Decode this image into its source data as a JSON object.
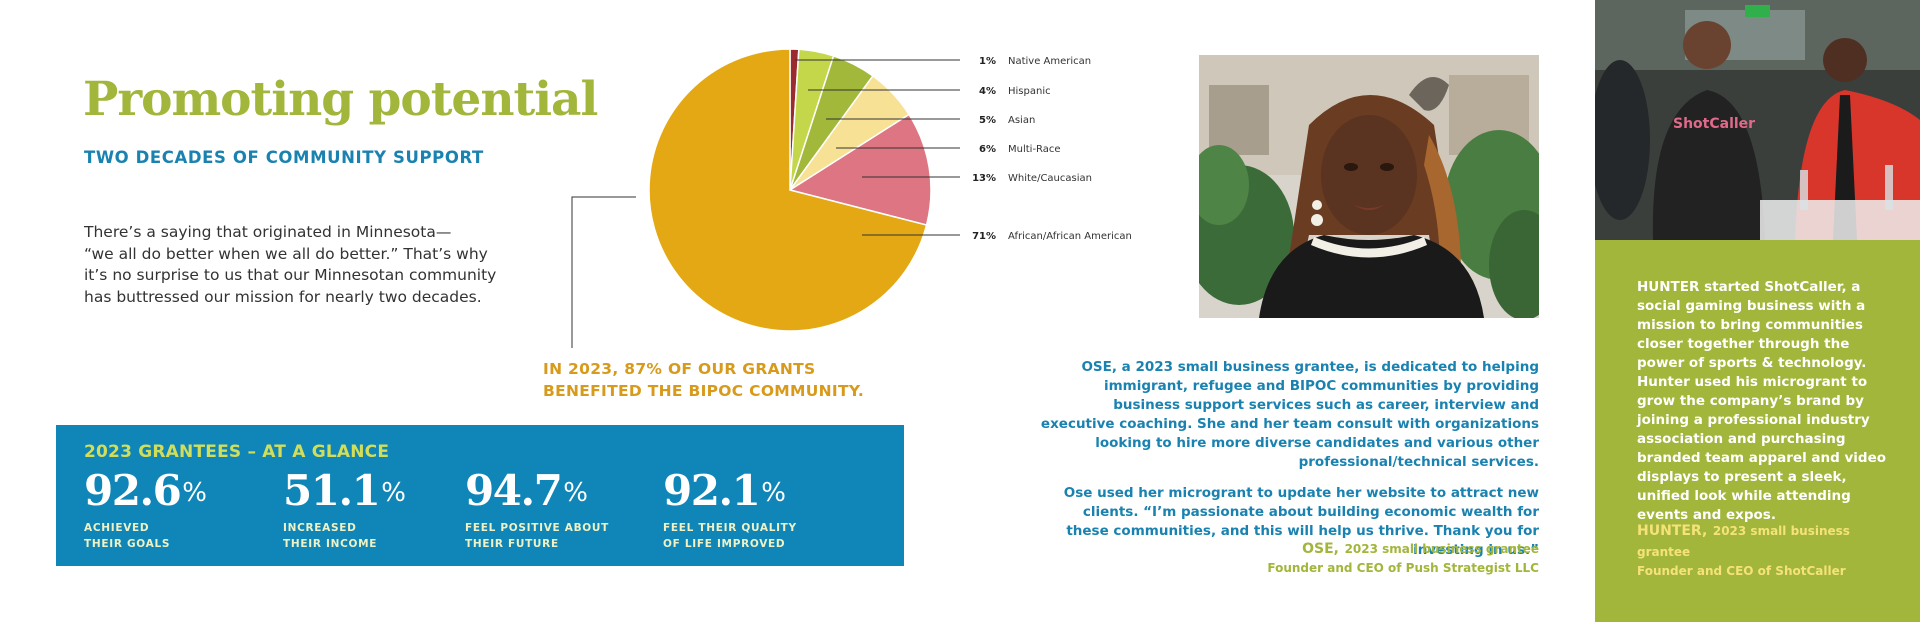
{
  "header": {
    "title": "Promoting potential",
    "subtitle": "TWO DECADES OF COMMUNITY SUPPORT"
  },
  "intro": {
    "lines": [
      "There’s a saying that originated in Minnesota—",
      "“we all do better when we all do better.” That’s why",
      "it’s no surprise to us that our Minnesotan community",
      "has buttressed our mission for nearly two decades."
    ]
  },
  "callout": {
    "line1": "IN 2023, 87% OF OUR GRANTS",
    "line2": "BENEFITED THE BIPOC COMMUNITY."
  },
  "chart_data": {
    "type": "pie",
    "labels": [
      "Native American",
      "Hispanic",
      "Asian",
      "Multi-Race",
      "White/Caucasian",
      "African/African American"
    ],
    "values": [
      1,
      4,
      5,
      6,
      13,
      71
    ],
    "value_labels": [
      "1%",
      "4%",
      "5%",
      "6%",
      "13%",
      "71%"
    ],
    "colors": [
      "#9b2b2e",
      "#c4d649",
      "#a2b83a",
      "#f7e195",
      "#de7582",
      "#e3a813"
    ]
  },
  "stats": {
    "heading": "2023 GRANTEES – AT A GLANCE",
    "items": [
      {
        "value": "92.6",
        "unit": "%",
        "label1": "ACHIEVED",
        "label2": "THEIR GOALS"
      },
      {
        "value": "51.1",
        "unit": "%",
        "label1": "INCREASED",
        "label2": "THEIR INCOME"
      },
      {
        "value": "94.7",
        "unit": "%",
        "label1": "FEEL POSITIVE ABOUT",
        "label2": "THEIR FUTURE"
      },
      {
        "value": "92.1",
        "unit": "%",
        "label1": "FEEL THEIR QUALITY",
        "label2": "OF LIFE IMPROVED"
      }
    ]
  },
  "ose": {
    "para1": "OSE, a 2023 small business grantee, is dedicated to helping immigrant, refugee and BIPOC communities by providing business support services such as career, interview and executive coaching. She and her team consult with organizations looking to hire more diverse candidates and various other professional/technical services.",
    "para2": "Ose used her microgrant to update her website to attract new clients. “I’m passionate about building economic wealth for these communities, and this will help us thrive. Thank you for investing in us.”",
    "name": "OSE,",
    "role": "2023 small business grantee",
    "title_line": "Founder and CEO of Push Strategist LLC"
  },
  "hunter": {
    "body": "HUNTER started ShotCaller, a social gaming business with a mission to bring communities closer together through the power of sports & technology. Hunter used his microgrant to grow the company’s brand by joining a professional industry association and purchasing branded team apparel and video displays to present a sleek, unified look while attending events and expos.",
    "name": "HUNTER,",
    "role": "2023 small business grantee",
    "title_line": "Founder and CEO of ShotCaller",
    "shirt_text": "ShotCaller"
  },
  "colors": {
    "green": "#a1b63a",
    "blue": "#0f86b7",
    "gold": "#d89a1a"
  }
}
